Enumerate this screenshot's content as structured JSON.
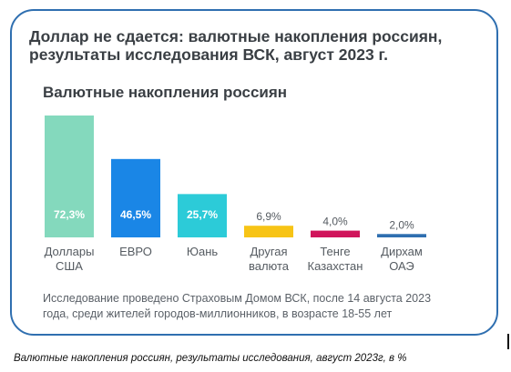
{
  "headline_line1": "Доллар не сдается: валютные накопления россиян,",
  "headline_line2": "результаты исследования ВСК, август 2023 г.",
  "footnote_line1": "Исследование проведено Страховым Домом ВСК, после 14 августа 2023",
  "footnote_line2": "года, среди жителей городов-миллионников, в возрасте 18-55 лет",
  "caption": "Валютные накопления россиян, результаты исследования, август 2023г, в %",
  "colors": {
    "border": "#2f6fb0",
    "text": "#3a3f44",
    "axis": "#2f6fb0",
    "label_text": "#555b61"
  },
  "chart_data": {
    "type": "bar",
    "title": "Валютные накопления россиян",
    "categories": [
      [
        "Доллары",
        "США"
      ],
      [
        "ЕВРО"
      ],
      [
        "Юань"
      ],
      [
        "Другая",
        "валюта"
      ],
      [
        "Тенге",
        "Казахстан"
      ],
      [
        "Дирхам",
        "ОАЭ"
      ]
    ],
    "values": [
      72.3,
      46.5,
      25.7,
      6.9,
      4.0,
      2.0
    ],
    "value_labels": [
      "72,3%",
      "46,5%",
      "25,7%",
      "6,9%",
      "4,0%",
      "2,0%"
    ],
    "colors": [
      "#84d9bd",
      "#1a86e6",
      "#2ccbd8",
      "#f7c416",
      "#d0155b",
      "#2f6fb0"
    ],
    "label_inside": [
      true,
      true,
      true,
      false,
      false,
      false
    ],
    "ylim": [
      0,
      72.3
    ],
    "grid": false,
    "legend": "none"
  }
}
